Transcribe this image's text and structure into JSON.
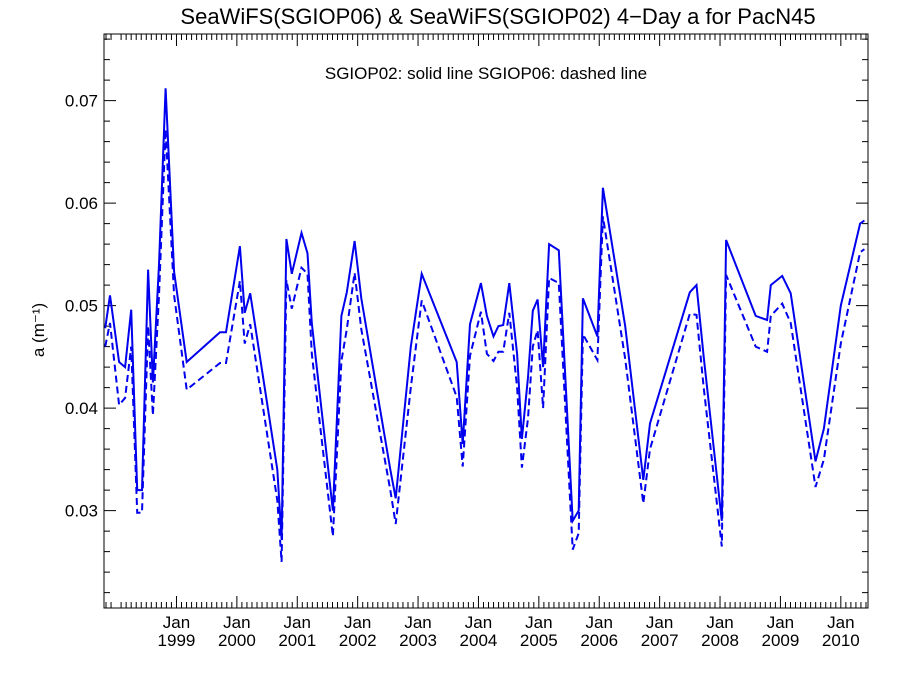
{
  "chart_data": {
    "type": "line",
    "title": "SeaWiFS(SGIOP06) & SeaWiFS(SGIOP02) 4−Day a for PacN45",
    "annotation": "SGIOP02: solid line   SGIOP06: dashed line",
    "ylabel": "a (m⁻¹)",
    "xlabel": "",
    "xlim": [
      1997.8,
      2010.45
    ],
    "ylim": [
      0.0205,
      0.0765
    ],
    "y_ticks": [
      0.03,
      0.04,
      0.05,
      0.06,
      0.07
    ],
    "y_tick_labels": [
      "0.03",
      "0.04",
      "0.05",
      "0.06",
      "0.07"
    ],
    "x_ticks": [
      1999.0,
      2000.0,
      2001.0,
      2002.0,
      2003.0,
      2004.0,
      2005.0,
      2006.0,
      2007.0,
      2008.0,
      2009.0,
      2010.0
    ],
    "x_tick_month": "Jan",
    "x_tick_years": [
      "1999",
      "2000",
      "2001",
      "2002",
      "2003",
      "2004",
      "2005",
      "2006",
      "2007",
      "2008",
      "2009",
      "2010"
    ],
    "grid": false,
    "color": "#0000ee",
    "series": [
      {
        "name": "SGIOP02",
        "style": "solid",
        "x": [
          1997.82,
          1997.9,
          1998.05,
          1998.15,
          1998.25,
          1998.35,
          1998.43,
          1998.53,
          1998.61,
          1998.71,
          1998.82,
          1998.96,
          1999.17,
          1999.72,
          1999.82,
          2000.05,
          2000.13,
          2000.22,
          2000.67,
          2000.74,
          2000.82,
          2000.91,
          2001.07,
          2001.17,
          2001.24,
          2001.38,
          2001.59,
          2001.73,
          2001.82,
          2001.95,
          2002.06,
          2002.54,
          2002.63,
          2002.88,
          2003.06,
          2003.64,
          2003.74,
          2003.86,
          2004.04,
          2004.14,
          2004.25,
          2004.33,
          2004.41,
          2004.51,
          2004.64,
          2004.72,
          2004.82,
          2004.9,
          2004.98,
          2005.07,
          2005.17,
          2005.33,
          2005.56,
          2005.66,
          2005.73,
          2005.97,
          2006.06,
          2006.43,
          2006.73,
          2006.84,
          2007.5,
          2007.61,
          2007.73,
          2008.03,
          2008.1,
          2008.59,
          2008.78,
          2008.84,
          2009.03,
          2009.17,
          2009.58,
          2009.72,
          2010.0,
          2010.32,
          2010.39
        ],
        "values": [
          0.0478,
          0.051,
          0.0445,
          0.044,
          0.0496,
          0.032,
          0.032,
          0.0535,
          0.0425,
          0.054,
          0.0712,
          0.0533,
          0.0445,
          0.0474,
          0.0474,
          0.0558,
          0.0493,
          0.0512,
          0.034,
          0.0272,
          0.0565,
          0.0531,
          0.0571,
          0.0551,
          0.0483,
          0.041,
          0.03,
          0.049,
          0.0513,
          0.0563,
          0.0507,
          0.034,
          0.0312,
          0.046,
          0.0531,
          0.0445,
          0.0365,
          0.0482,
          0.0522,
          0.049,
          0.047,
          0.048,
          0.0481,
          0.0522,
          0.0453,
          0.037,
          0.043,
          0.0495,
          0.0506,
          0.044,
          0.056,
          0.0554,
          0.029,
          0.03,
          0.0507,
          0.047,
          0.0615,
          0.048,
          0.033,
          0.0385,
          0.0513,
          0.052,
          0.045,
          0.029,
          0.0564,
          0.049,
          0.0486,
          0.052,
          0.0529,
          0.0512,
          0.0348,
          0.038,
          0.05,
          0.058,
          0.0583
        ]
      },
      {
        "name": "SGIOP06",
        "style": "dashed",
        "x": [
          1997.82,
          1997.9,
          1998.05,
          1998.15,
          1998.25,
          1998.35,
          1998.43,
          1998.53,
          1998.61,
          1998.71,
          1998.82,
          1998.96,
          1999.17,
          1999.72,
          1999.82,
          2000.05,
          2000.13,
          2000.22,
          2000.67,
          2000.74,
          2000.82,
          2000.91,
          2001.07,
          2001.17,
          2001.24,
          2001.38,
          2001.59,
          2001.73,
          2001.82,
          2001.95,
          2002.06,
          2002.54,
          2002.63,
          2002.88,
          2003.06,
          2003.64,
          2003.74,
          2003.86,
          2004.04,
          2004.14,
          2004.25,
          2004.33,
          2004.41,
          2004.51,
          2004.64,
          2004.72,
          2004.82,
          2004.9,
          2004.98,
          2005.07,
          2005.17,
          2005.33,
          2005.56,
          2005.66,
          2005.73,
          2005.97,
          2006.06,
          2006.43,
          2006.73,
          2006.84,
          2007.5,
          2007.61,
          2007.73,
          2008.03,
          2008.1,
          2008.59,
          2008.78,
          2008.84,
          2009.03,
          2009.17,
          2009.58,
          2009.72,
          2010.0,
          2010.32,
          2010.39
        ],
        "values": [
          0.046,
          0.0483,
          0.0403,
          0.041,
          0.046,
          0.0298,
          0.0298,
          0.048,
          0.0393,
          0.051,
          0.0672,
          0.051,
          0.0418,
          0.0444,
          0.0444,
          0.0524,
          0.0463,
          0.0482,
          0.031,
          0.025,
          0.0525,
          0.0497,
          0.0537,
          0.0531,
          0.0453,
          0.0382,
          0.0275,
          0.0446,
          0.0477,
          0.0532,
          0.0477,
          0.032,
          0.0287,
          0.042,
          0.0505,
          0.0411,
          0.0343,
          0.0451,
          0.0494,
          0.0453,
          0.0446,
          0.0455,
          0.0455,
          0.0493,
          0.042,
          0.0342,
          0.039,
          0.046,
          0.0476,
          0.04,
          0.0527,
          0.0522,
          0.0262,
          0.0278,
          0.0472,
          0.0447,
          0.0587,
          0.0448,
          0.0307,
          0.036,
          0.0492,
          0.0491,
          0.042,
          0.0265,
          0.053,
          0.046,
          0.0455,
          0.049,
          0.0502,
          0.0483,
          0.0323,
          0.035,
          0.0463,
          0.0552,
          0.0555
        ]
      }
    ]
  }
}
